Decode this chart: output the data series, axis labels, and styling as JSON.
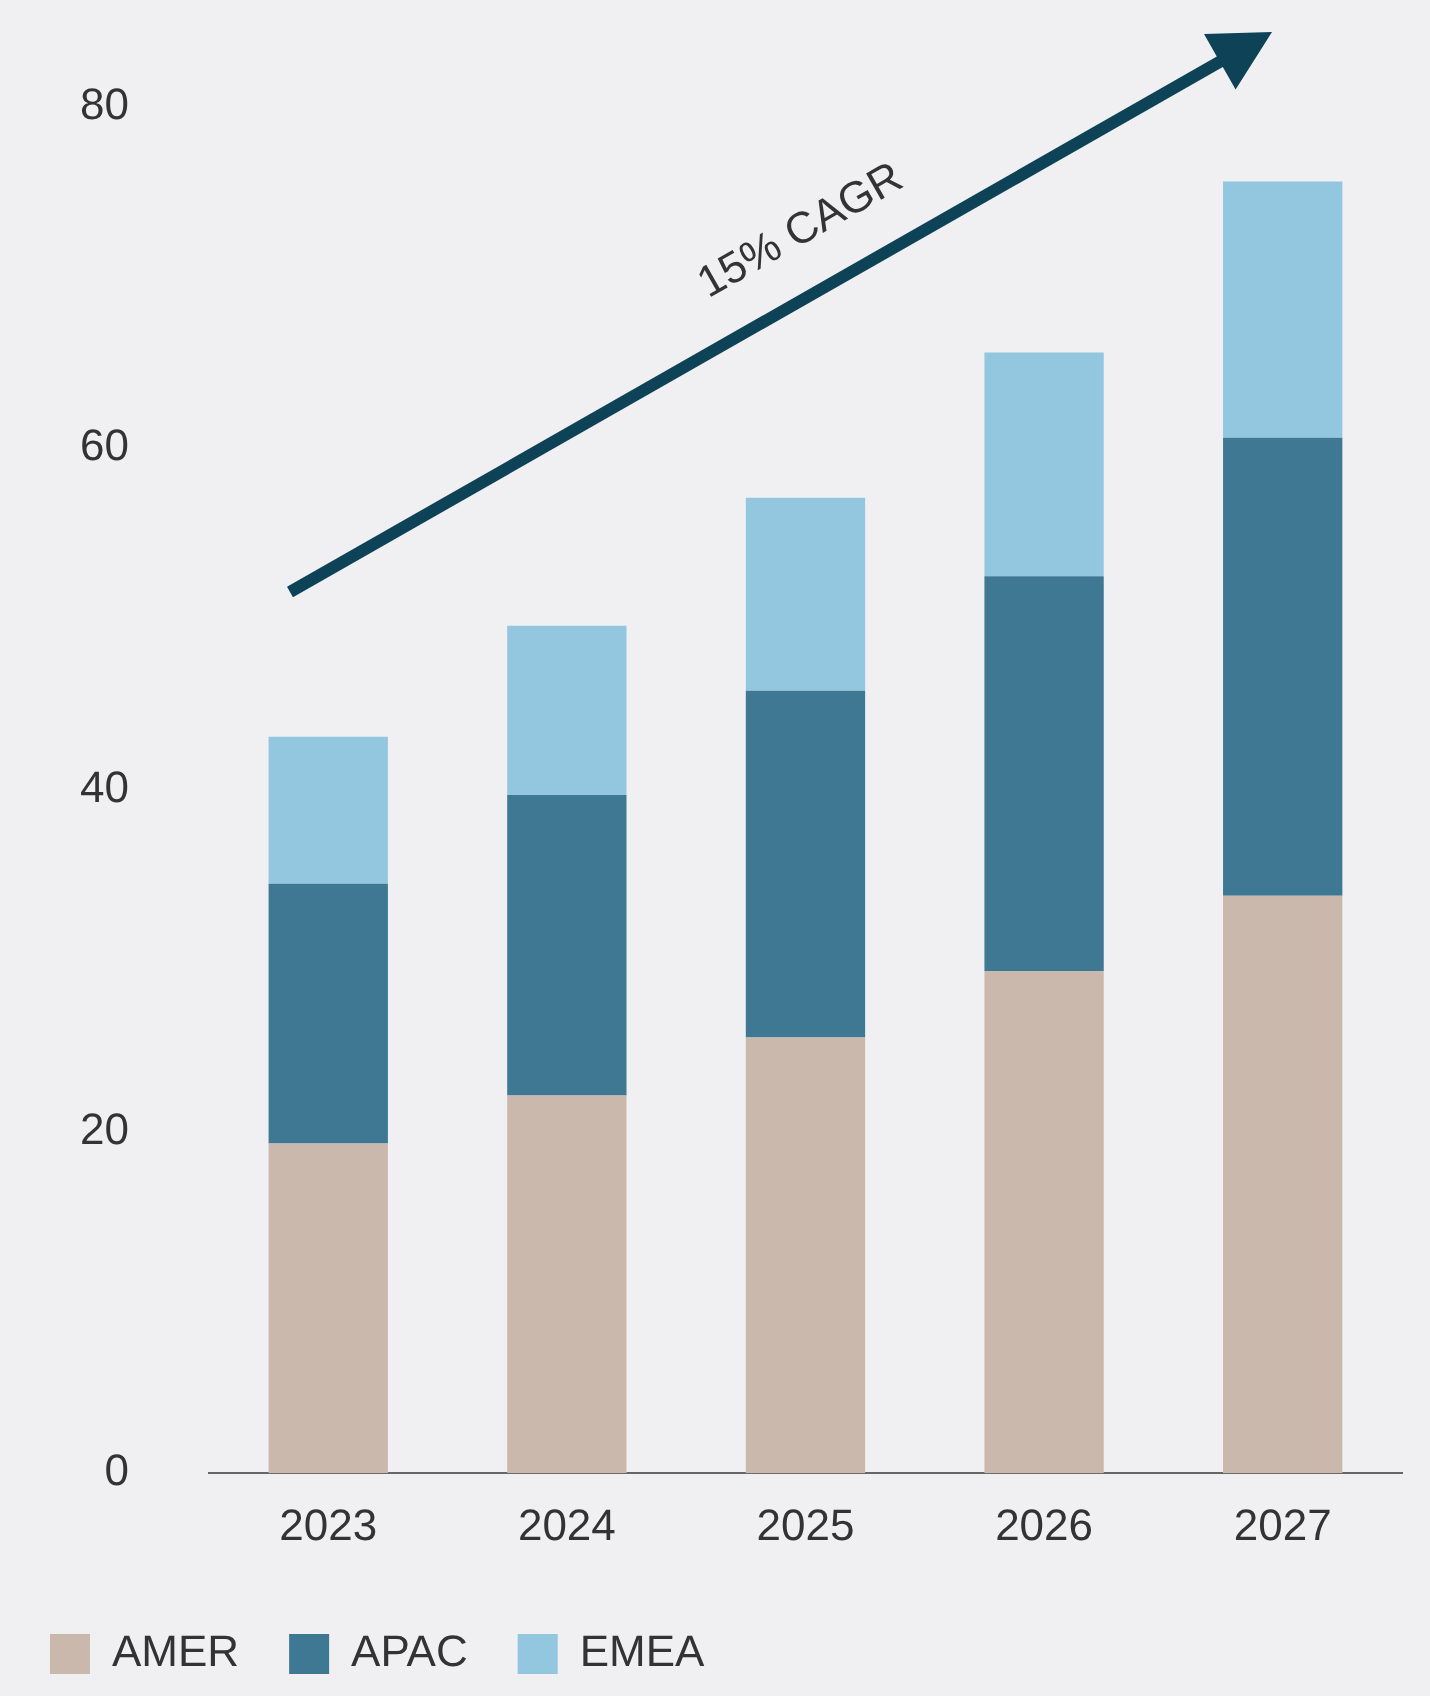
{
  "chart_data": {
    "type": "bar",
    "stacked": true,
    "categories": [
      "2023",
      "2024",
      "2025",
      "2026",
      "2027"
    ],
    "series": [
      {
        "name": "AMER",
        "color": "#cbb8ac",
        "values": [
          19.3,
          22.1,
          25.5,
          29.4,
          33.8
        ]
      },
      {
        "name": "APAC",
        "color": "#3e7893",
        "values": [
          15.2,
          17.6,
          20.3,
          23.1,
          26.8
        ]
      },
      {
        "name": "EMEA",
        "color": "#93c6df",
        "values": [
          8.6,
          9.9,
          11.3,
          13.1,
          15.0
        ]
      }
    ],
    "ylim": [
      0,
      80
    ],
    "yticks": [
      0,
      20,
      40,
      60,
      80
    ],
    "grid": false,
    "legend": "bottom",
    "annotations": [
      "15% CAGR"
    ]
  }
}
